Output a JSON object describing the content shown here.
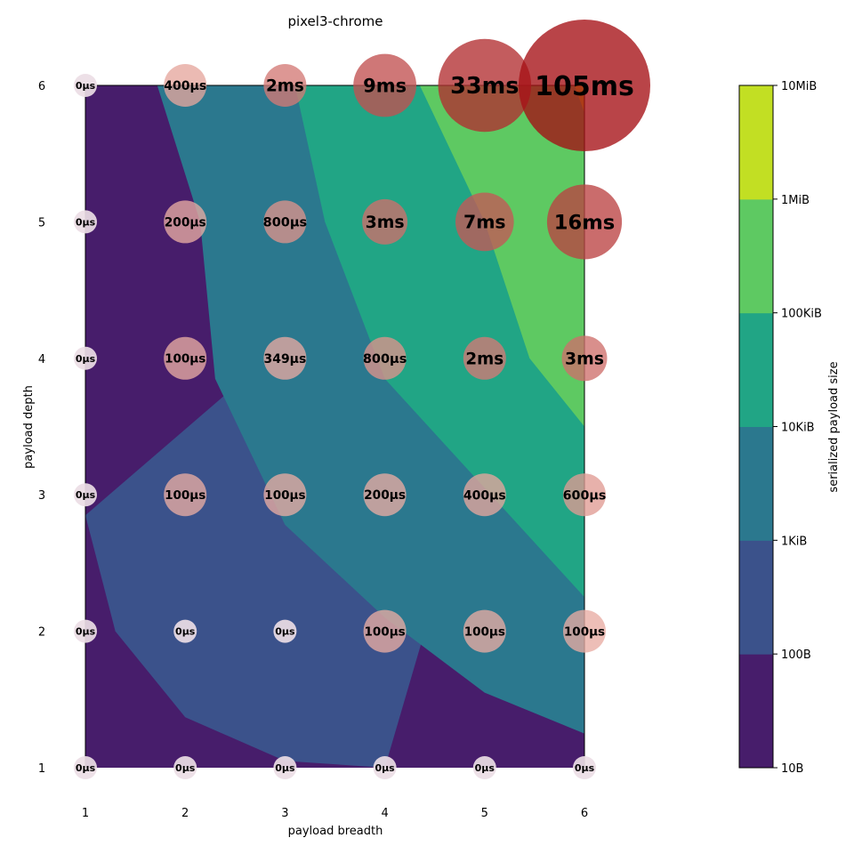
{
  "chart_data": {
    "type": "scatter",
    "title": "pixel3-chrome",
    "xlabel": "payload breadth",
    "ylabel": "payload depth",
    "xlim": [
      1,
      6
    ],
    "ylim": [
      1,
      6
    ],
    "x_ticks": [
      "1",
      "2",
      "3",
      "4",
      "5",
      "6"
    ],
    "y_ticks": [
      "1",
      "2",
      "3",
      "4",
      "5",
      "6"
    ],
    "grid": false,
    "contour": {
      "variable": "serialized payload size",
      "levels": [
        "10B",
        "100B",
        "1KiB",
        "10KiB",
        "100KiB",
        "1MiB",
        "10MiB"
      ],
      "colors": [
        "#471d6b",
        "#3b528b",
        "#2b788e",
        "#21a585",
        "#5ec962",
        "#c2df23"
      ],
      "boundaries": [
        [
          [
            1,
            2.85
          ],
          [
            1.3,
            2.0
          ],
          [
            2.0,
            1.37
          ],
          [
            3.0,
            1.05
          ],
          [
            4.0,
            1.0
          ]
        ],
        [
          [
            1.72,
            6
          ],
          [
            2.15,
            5.0
          ],
          [
            2.3,
            3.85
          ],
          [
            3.0,
            2.78
          ],
          [
            4.0,
            2.1
          ],
          [
            5.0,
            1.55
          ],
          [
            6.0,
            1.25
          ]
        ],
        [
          [
            3.1,
            6
          ],
          [
            3.4,
            5.0
          ],
          [
            4.0,
            3.85
          ],
          [
            5.0,
            3.05
          ],
          [
            6.0,
            2.25
          ]
        ],
        [
          [
            4.35,
            6
          ],
          [
            5.0,
            5.0
          ],
          [
            5.45,
            4.0
          ],
          [
            6.0,
            3.5
          ]
        ],
        [
          [
            5.9,
            6
          ],
          [
            6.0,
            5.8
          ]
        ]
      ]
    },
    "bubbles": [
      {
        "x": 1,
        "y": 1,
        "label": "0µs",
        "value_us": 0
      },
      {
        "x": 2,
        "y": 1,
        "label": "0µs",
        "value_us": 0
      },
      {
        "x": 3,
        "y": 1,
        "label": "0µs",
        "value_us": 0
      },
      {
        "x": 4,
        "y": 1,
        "label": "0µs",
        "value_us": 0
      },
      {
        "x": 5,
        "y": 1,
        "label": "0µs",
        "value_us": 0
      },
      {
        "x": 6,
        "y": 1,
        "label": "0µs",
        "value_us": 0
      },
      {
        "x": 1,
        "y": 2,
        "label": "0µs",
        "value_us": 0
      },
      {
        "x": 2,
        "y": 2,
        "label": "0µs",
        "value_us": 0
      },
      {
        "x": 3,
        "y": 2,
        "label": "0µs",
        "value_us": 0
      },
      {
        "x": 4,
        "y": 2,
        "label": "100µs",
        "value_us": 100
      },
      {
        "x": 5,
        "y": 2,
        "label": "100µs",
        "value_us": 100
      },
      {
        "x": 6,
        "y": 2,
        "label": "100µs",
        "value_us": 100
      },
      {
        "x": 1,
        "y": 3,
        "label": "0µs",
        "value_us": 0
      },
      {
        "x": 2,
        "y": 3,
        "label": "100µs",
        "value_us": 100
      },
      {
        "x": 3,
        "y": 3,
        "label": "100µs",
        "value_us": 100
      },
      {
        "x": 4,
        "y": 3,
        "label": "200µs",
        "value_us": 200
      },
      {
        "x": 5,
        "y": 3,
        "label": "400µs",
        "value_us": 400
      },
      {
        "x": 6,
        "y": 3,
        "label": "600µs",
        "value_us": 600
      },
      {
        "x": 1,
        "y": 4,
        "label": "0µs",
        "value_us": 0
      },
      {
        "x": 2,
        "y": 4,
        "label": "100µs",
        "value_us": 100
      },
      {
        "x": 3,
        "y": 4,
        "label": "349µs",
        "value_us": 349
      },
      {
        "x": 4,
        "y": 4,
        "label": "800µs",
        "value_us": 800
      },
      {
        "x": 5,
        "y": 4,
        "label": "2ms",
        "value_us": 2000
      },
      {
        "x": 6,
        "y": 4,
        "label": "3ms",
        "value_us": 3000
      },
      {
        "x": 1,
        "y": 5,
        "label": "0µs",
        "value_us": 0
      },
      {
        "x": 2,
        "y": 5,
        "label": "200µs",
        "value_us": 200
      },
      {
        "x": 3,
        "y": 5,
        "label": "800µs",
        "value_us": 800
      },
      {
        "x": 4,
        "y": 5,
        "label": "3ms",
        "value_us": 3000
      },
      {
        "x": 5,
        "y": 5,
        "label": "7ms",
        "value_us": 7000
      },
      {
        "x": 6,
        "y": 5,
        "label": "16ms",
        "value_us": 16000
      },
      {
        "x": 1,
        "y": 6,
        "label": "0µs",
        "value_us": 0
      },
      {
        "x": 2,
        "y": 6,
        "label": "400µs",
        "value_us": 400
      },
      {
        "x": 3,
        "y": 6,
        "label": "2ms",
        "value_us": 2000
      },
      {
        "x": 4,
        "y": 6,
        "label": "9ms",
        "value_us": 9000
      },
      {
        "x": 5,
        "y": 6,
        "label": "33ms",
        "value_us": 33000
      },
      {
        "x": 6,
        "y": 6,
        "label": "105ms",
        "value_us": 105000
      }
    ],
    "colorbar": {
      "label": "serialized payload size",
      "ticks": [
        "10B",
        "100B",
        "1KiB",
        "10KiB",
        "100KiB",
        "1MiB",
        "10MiB"
      ]
    }
  }
}
